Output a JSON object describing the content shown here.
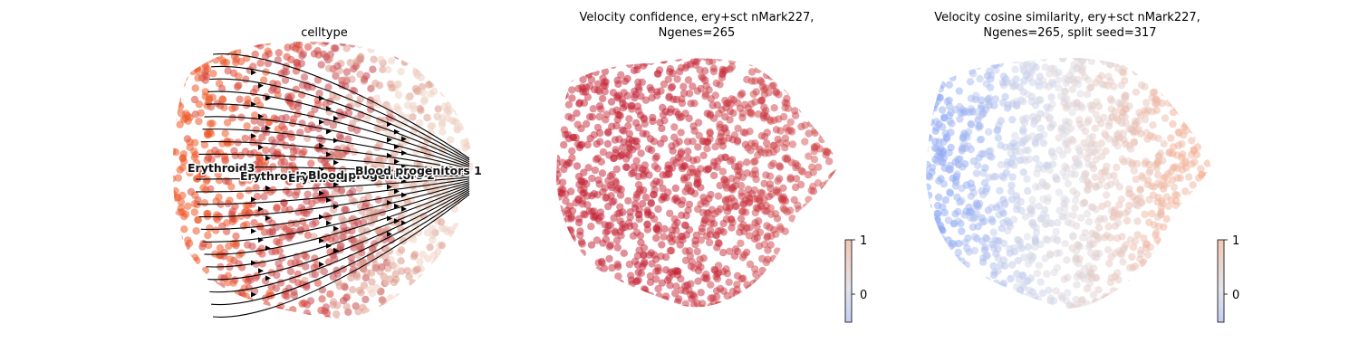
{
  "chart_data": [
    {
      "type": "scatter",
      "title": "celltype",
      "embedding": "umap",
      "overlay": "velocity streamlines",
      "categories": [
        "Erythroid3",
        "Erythroid2",
        "Erythroid1",
        "Blood progenitors 2",
        "Blood progenitors 1"
      ],
      "category_colors": {
        "Erythroid3": "#ef5a2a",
        "Erythroid2": "#d9473a",
        "Erythroid1": "#c94a52",
        "Blood progenitors 2": "#dc9a8c",
        "Blood progenitors 1": "#efd2c2"
      },
      "axes_visible": false
    },
    {
      "type": "scatter",
      "title": "Velocity confidence, ery+sct nMark227,",
      "title_line2": "Ngenes=265",
      "colormap": "coolwarm",
      "colorbar": {
        "ticks": [
          1,
          0
        ]
      },
      "dominant_color": "#c0172e",
      "axes_visible": false
    },
    {
      "type": "scatter",
      "title": "Velocity cosine similarity, ery+sct nMark227,",
      "title_line2": "Ngenes=265, split seed=317",
      "colormap": "coolwarm",
      "colorbar": {
        "ticks": [
          1,
          0
        ]
      },
      "gradient": {
        "left": "#8aa6f5",
        "middle": "#dcdde6",
        "right": "#f3ae92"
      },
      "axes_visible": false
    }
  ],
  "colors": {
    "coolwarm_low": "#3b4cc0",
    "coolwarm_mid": "#dddddd",
    "coolwarm_high": "#b40426"
  }
}
